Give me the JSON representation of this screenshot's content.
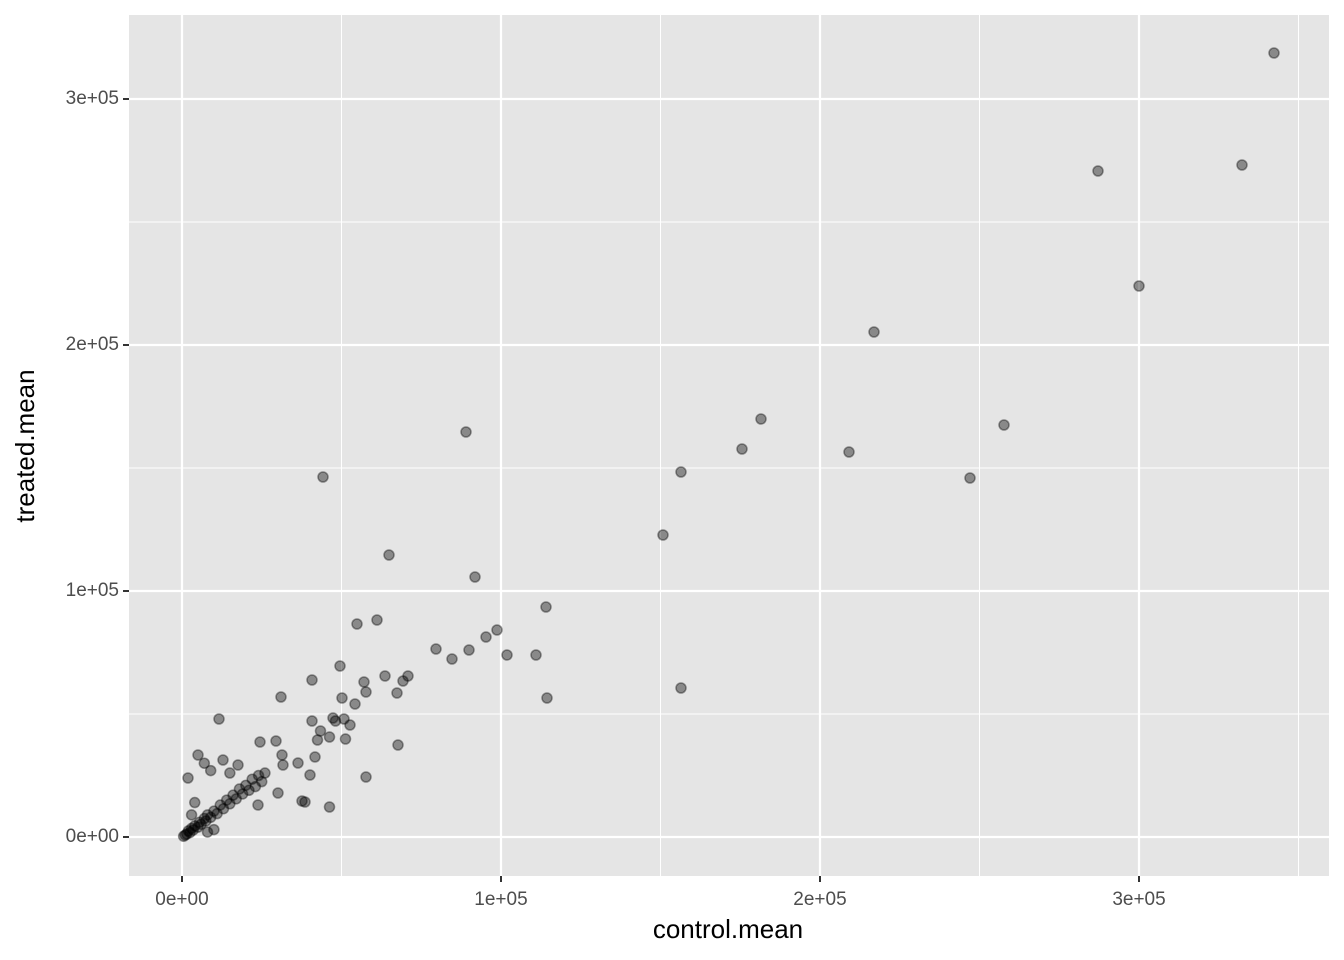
{
  "chart_data": {
    "type": "scatter",
    "xlabel": "control.mean",
    "ylabel": "treated.mean",
    "color": "#000000",
    "alpha": 0.4,
    "grid": true,
    "xlim": [
      -16614,
      359561
    ],
    "ylim": [
      -15854,
      334146
    ],
    "xticks": [
      {
        "value": 0,
        "label": "0e+00"
      },
      {
        "value": 100000,
        "label": "1e+05"
      },
      {
        "value": 200000,
        "label": "2e+05"
      },
      {
        "value": 300000,
        "label": "3e+05"
      }
    ],
    "yticks": [
      {
        "value": 0,
        "label": "0e+00"
      },
      {
        "value": 100000,
        "label": "1e+05"
      },
      {
        "value": 200000,
        "label": "2e+05"
      },
      {
        "value": 300000,
        "label": "3e+05"
      }
    ],
    "xminorticks": [
      50000,
      150000,
      250000,
      350000
    ],
    "yminorticks": [
      50000,
      150000,
      250000
    ],
    "x": [
      342320,
      287147,
      332288,
      300000,
      216928,
      257680,
      247022,
      209091,
      181505,
      175549,
      156426,
      150784,
      156426,
      114107,
      114420,
      110972,
      101881,
      98746,
      95298,
      89969,
      84639,
      79624,
      89028,
      91850,
      64890,
      44201,
      61129,
      54859,
      70846,
      69279,
      67398,
      63636,
      67712,
      57680,
      57053,
      49530,
      50157,
      54232,
      57680,
      40752,
      31034,
      40752,
      50784,
      47335,
      52665,
      48119,
      51254,
      46238,
      43417,
      42476,
      46238,
      38558,
      40125,
      41693,
      36364,
      29467,
      24451,
      11599,
      31661,
      37618,
      30094,
      500,
      1000,
      1500,
      2000,
      2500,
      3000,
      3500,
      4000,
      5000,
      5500,
      6000,
      7000,
      7500,
      8000,
      9000,
      10000,
      11000,
      12000,
      13000,
      14000,
      15000,
      16000,
      17000,
      18000,
      19000,
      20000,
      21000,
      22000,
      23000,
      24000,
      25000,
      26000,
      1881,
      5016,
      7000,
      12853,
      9000,
      4000,
      3000,
      17555,
      31348,
      15000,
      10000,
      23824,
      8000
    ],
    "values": [
      318699,
      270732,
      273171,
      223984,
      205285,
      167480,
      145935,
      156504,
      169919,
      157724,
      148374,
      122764,
      60569,
      93496,
      56504,
      73984,
      73984,
      84146,
      81301,
      76016,
      72358,
      76423,
      164634,
      105691,
      114634,
      146341,
      88211,
      86585,
      65447,
      63415,
      58537,
      65447,
      37398,
      24390,
      63008,
      69512,
      56504,
      54065,
      58943,
      63821,
      56911,
      47154,
      47967,
      48374,
      45528,
      47154,
      39837,
      40650,
      43089,
      39431,
      12195,
      14228,
      25203,
      32520,
      30081,
      39024,
      38618,
      47967,
      29268,
      14634,
      17886,
      300,
      800,
      1200,
      2500,
      1800,
      3500,
      2800,
      4500,
      4000,
      6000,
      5200,
      7500,
      6500,
      9000,
      8000,
      10500,
      9500,
      13000,
      11500,
      15000,
      13500,
      17000,
      15500,
      19500,
      17500,
      21000,
      19000,
      23500,
      20500,
      25000,
      22500,
      26000,
      23984,
      33333,
      30000,
      31301,
      27000,
      14000,
      9000,
      29268,
      33333,
      26000,
      3000,
      13008,
      2000
    ]
  }
}
